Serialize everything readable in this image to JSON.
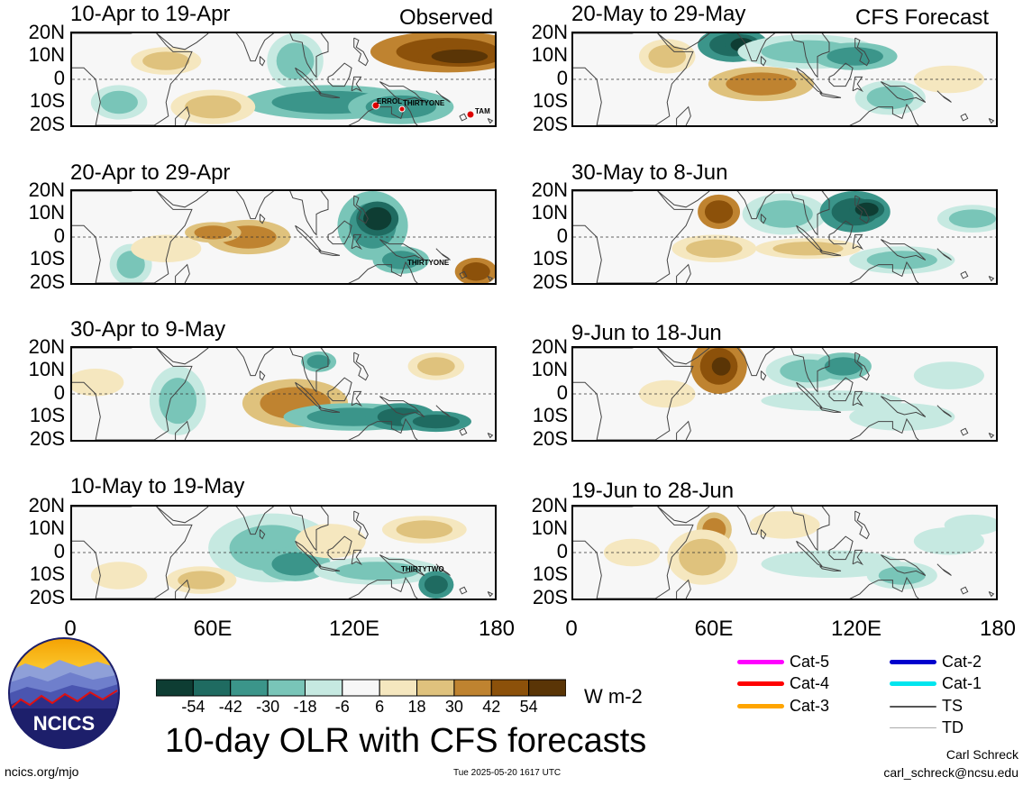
{
  "header": {
    "left_tag": "Observed",
    "right_tag": "CFS Forecast"
  },
  "panels_left": [
    {
      "title": "10-Apr to 19-Apr"
    },
    {
      "title": "20-Apr to 29-Apr"
    },
    {
      "title": "30-Apr to 9-May"
    },
    {
      "title": "10-May to 19-May"
    }
  ],
  "panels_right": [
    {
      "title": "20-May to 29-May"
    },
    {
      "title": "30-May to 8-Jun"
    },
    {
      "title": "9-Jun to 18-Jun"
    },
    {
      "title": "19-Jun to 28-Jun"
    }
  ],
  "lat_labels": [
    "20N",
    "10N",
    "0",
    "10S",
    "20S"
  ],
  "lon_labels": [
    "0",
    "60E",
    "120E",
    "180"
  ],
  "storms": {
    "p1": [
      "ERROL",
      "THIRTYONE",
      "TAM"
    ],
    "p2": [
      "THIRTYONE"
    ],
    "p4": [
      "THIRTYTWO"
    ]
  },
  "colorbar": {
    "tick_labels": [
      "-54",
      "-42",
      "-30",
      "-18",
      "-6",
      "6",
      "18",
      "30",
      "42",
      "54"
    ],
    "colors": [
      "#0e3d33",
      "#1f6b61",
      "#3b958a",
      "#79c5b8",
      "#c6e9e1",
      "#f7f7f7",
      "#f5e7bf",
      "#dfc27d",
      "#bf8330",
      "#8c510a",
      "#5a3506"
    ],
    "units": "W m-2"
  },
  "main_title": "10-day OLR with CFS forecasts",
  "logo_text": "NCICS",
  "footer": {
    "url": "ncics.org/mjo",
    "timestamp": "Tue 2025-05-20 1617 UTC",
    "author": "Carl Schreck",
    "email": "carl_schreck@ncsu.edu"
  },
  "storm_legend": [
    {
      "label": "Cat-5",
      "color": "#ff00ff"
    },
    {
      "label": "Cat-4",
      "color": "#ff0000"
    },
    {
      "label": "Cat-3",
      "color": "#ffa500"
    },
    {
      "label": "Cat-2",
      "color": "#0000cd"
    },
    {
      "label": "Cat-1",
      "color": "#00e5ee"
    },
    {
      "label": "TS",
      "color": "#555555"
    },
    {
      "label": "TD",
      "color": "#aaaaaa"
    }
  ]
}
